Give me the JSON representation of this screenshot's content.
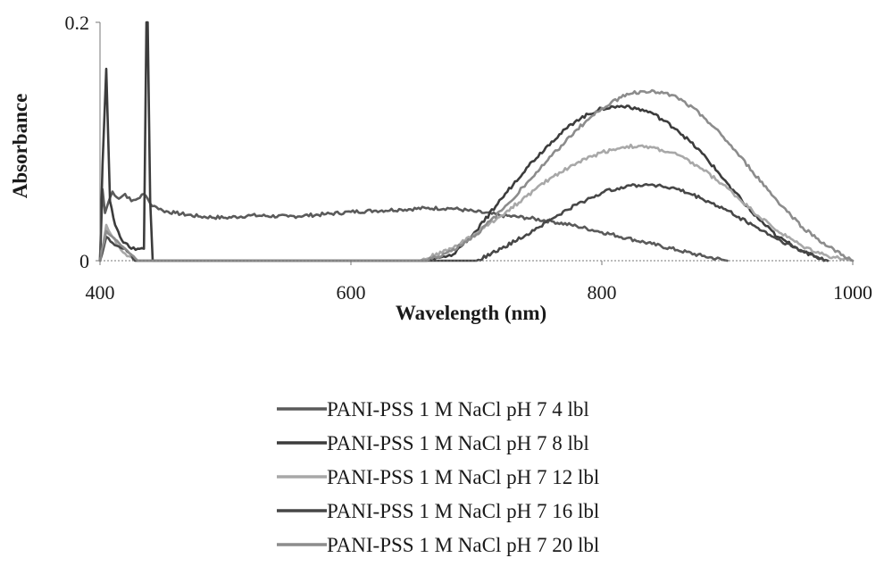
{
  "chart_data": {
    "type": "line",
    "xlabel": "Wavelength (nm)",
    "ylabel": "Absorbance",
    "xlim": [
      400,
      1000
    ],
    "ylim": [
      0,
      0.2
    ],
    "x_ticks": [
      "400",
      "600",
      "800",
      "1000"
    ],
    "y_ticks": [
      "0",
      "0.2"
    ],
    "grid": false,
    "legend_position": "bottom",
    "series": [
      {
        "name": "PANI-PSS 1 M NaCl pH 7 4 lbl",
        "color": "#5a5a5a",
        "x": [
          400,
          402,
          404,
          407,
          410,
          415,
          420,
          425,
          430,
          435,
          438,
          440,
          445,
          450,
          460,
          480,
          500,
          520,
          550,
          580,
          600,
          620,
          640,
          660,
          680,
          700,
          720,
          740,
          760,
          780,
          800,
          820,
          840,
          860,
          880,
          900
        ],
        "y": [
          0.0,
          0.06,
          0.04,
          0.05,
          0.058,
          0.052,
          0.056,
          0.05,
          0.052,
          0.056,
          0.052,
          0.048,
          0.045,
          0.042,
          0.04,
          0.037,
          0.036,
          0.038,
          0.037,
          0.039,
          0.041,
          0.042,
          0.043,
          0.044,
          0.044,
          0.041,
          0.038,
          0.036,
          0.033,
          0.029,
          0.024,
          0.019,
          0.014,
          0.009,
          0.004,
          0.0
        ]
      },
      {
        "name": "PANI-PSS 1 M NaCl pH 7 8 lbl",
        "color": "#3c3c3c",
        "x": [
          400,
          402,
          405,
          408,
          412,
          416,
          420,
          425,
          430,
          435,
          437,
          438,
          440,
          442,
          660,
          680,
          700,
          720,
          740,
          760,
          780,
          800,
          820,
          840,
          860,
          880,
          900,
          920,
          940,
          960,
          980
        ],
        "y": [
          0.0,
          0.08,
          0.161,
          0.05,
          0.03,
          0.02,
          0.015,
          0.01,
          0.01,
          0.01,
          0.2,
          0.2,
          0.05,
          0.0,
          0.0,
          0.004,
          0.025,
          0.052,
          0.078,
          0.1,
          0.118,
          0.128,
          0.13,
          0.124,
          0.11,
          0.09,
          0.065,
          0.04,
          0.02,
          0.008,
          0.0
        ]
      },
      {
        "name": "PANI-PSS 1 M NaCl pH 7 12 lbl",
        "color": "#a8a8a8",
        "x": [
          400,
          405,
          410,
          415,
          420,
          425,
          428,
          430,
          655,
          680,
          700,
          720,
          740,
          760,
          780,
          800,
          820,
          840,
          860,
          880,
          900,
          920,
          940,
          960,
          980,
          1000
        ],
        "y": [
          0.0,
          0.03,
          0.02,
          0.012,
          0.006,
          0.003,
          0.0,
          0.0,
          0.0,
          0.01,
          0.023,
          0.038,
          0.054,
          0.07,
          0.082,
          0.091,
          0.096,
          0.095,
          0.089,
          0.077,
          0.061,
          0.042,
          0.025,
          0.012,
          0.004,
          0.0
        ]
      },
      {
        "name": "PANI-PSS 1 M NaCl pH 7 16 lbl",
        "color": "#474747",
        "x": [
          400,
          405,
          410,
          415,
          420,
          425,
          428,
          700,
          720,
          740,
          760,
          780,
          800,
          820,
          840,
          860,
          880,
          900,
          920,
          940,
          960,
          980
        ],
        "y": [
          0.0,
          0.02,
          0.015,
          0.012,
          0.01,
          0.005,
          0.0,
          0.0,
          0.01,
          0.022,
          0.035,
          0.047,
          0.057,
          0.063,
          0.064,
          0.06,
          0.052,
          0.042,
          0.03,
          0.018,
          0.008,
          0.0
        ]
      },
      {
        "name": "PANI-PSS 1 M NaCl pH 7 20 lbl",
        "color": "#8c8c8c",
        "x": [
          400,
          405,
          410,
          415,
          420,
          425,
          430,
          660,
          680,
          700,
          720,
          740,
          760,
          780,
          800,
          820,
          840,
          860,
          880,
          900,
          920,
          940,
          960,
          980,
          1000
        ],
        "y": [
          0.0,
          0.025,
          0.02,
          0.015,
          0.01,
          0.005,
          0.0,
          0.0,
          0.008,
          0.022,
          0.042,
          0.065,
          0.088,
          0.11,
          0.128,
          0.14,
          0.143,
          0.137,
          0.122,
          0.1,
          0.075,
          0.05,
          0.028,
          0.012,
          0.0
        ]
      }
    ]
  }
}
